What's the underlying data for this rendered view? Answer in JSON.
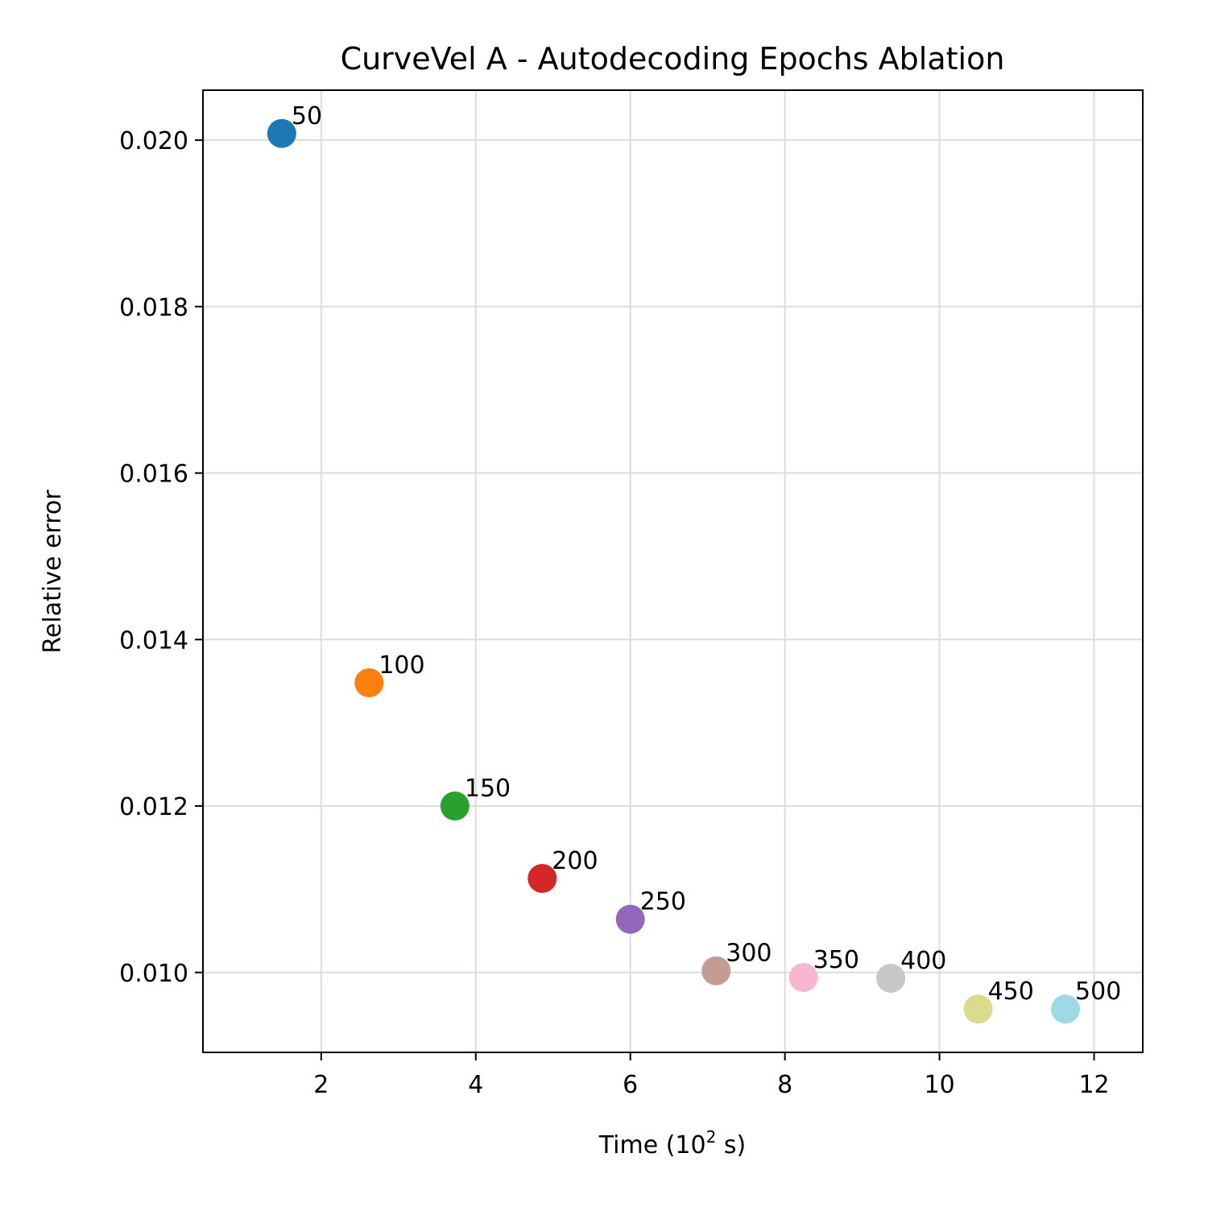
{
  "chart_data": {
    "type": "scatter",
    "title": "CurveVel A - Autodecoding Epochs Ablation",
    "xlabel_main": "Time (10",
    "xlabel_sup": "2",
    "xlabel_tail": " s)",
    "ylabel": "Relative error",
    "xlim": [
      0.47,
      12.63
    ],
    "ylim": [
      0.00904,
      0.0206
    ],
    "x_ticks": [
      2,
      4,
      6,
      8,
      10,
      12
    ],
    "x_tick_labels": [
      "2",
      "4",
      "6",
      "8",
      "10",
      "12"
    ],
    "y_ticks": [
      0.01,
      0.012,
      0.014,
      0.016,
      0.018,
      0.02
    ],
    "y_tick_labels": [
      "0.010",
      "0.012",
      "0.014",
      "0.016",
      "0.018",
      "0.020"
    ],
    "grid": true,
    "legend": "none",
    "points": [
      {
        "label": "50",
        "x": 1.49,
        "y": 0.02008,
        "color": "#1f77b4"
      },
      {
        "label": "100",
        "x": 2.62,
        "y": 0.01348,
        "color": "#ff7f0e"
      },
      {
        "label": "150",
        "x": 3.73,
        "y": 0.012,
        "color": "#2ca02c"
      },
      {
        "label": "200",
        "x": 4.86,
        "y": 0.01113,
        "color": "#d62728"
      },
      {
        "label": "250",
        "x": 6.0,
        "y": 0.01064,
        "color": "#9467bd"
      },
      {
        "label": "300",
        "x": 7.11,
        "y": 0.01002,
        "color": "#c49c94"
      },
      {
        "label": "350",
        "x": 8.24,
        "y": 0.00994,
        "color": "#f7b6d2"
      },
      {
        "label": "400",
        "x": 9.37,
        "y": 0.00993,
        "color": "#c7c7c7"
      },
      {
        "label": "450",
        "x": 10.5,
        "y": 0.00956,
        "color": "#dbdb8d"
      },
      {
        "label": "500",
        "x": 11.63,
        "y": 0.00956,
        "color": "#9edae5"
      }
    ]
  }
}
